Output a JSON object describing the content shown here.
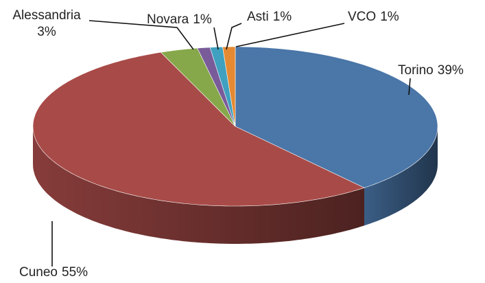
{
  "chart_data": {
    "type": "pie3d",
    "categories": [
      "Torino",
      "Cuneo",
      "Alessandria",
      "Novara",
      "Asti",
      "VCO"
    ],
    "values": [
      39,
      55,
      3,
      1,
      1,
      1
    ],
    "value_labels": [
      "39%",
      "55%",
      "3%",
      "1%",
      "1%",
      "1%"
    ],
    "colors": [
      "#4a76a8",
      "#a84b48",
      "#86a84a",
      "#7a5b9a",
      "#3fa0bf",
      "#e58a33"
    ]
  }
}
